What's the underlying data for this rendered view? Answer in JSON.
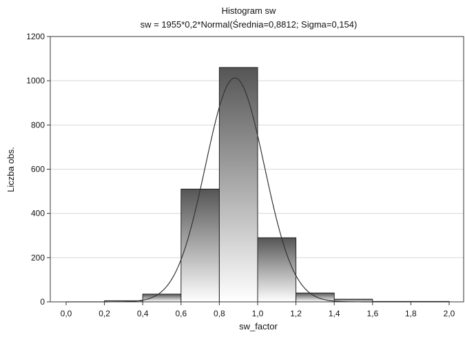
{
  "chart_data": {
    "type": "bar",
    "title": "Histogram   sw",
    "subtitle": "sw = 1955*0,2*Normal(Średnia=0,8812; Sigma=0,154)",
    "xlabel": "sw_factor",
    "ylabel": "Liczba obs.",
    "xlim": [
      -0.1,
      2.0
    ],
    "ylim": [
      0,
      1200
    ],
    "x_ticks": [
      "0,0",
      "0,2",
      "0,4",
      "0,6",
      "0,8",
      "1,0",
      "1,2",
      "1,4",
      "1,6",
      "1,8",
      "2,0"
    ],
    "y_ticks": [
      "0",
      "200",
      "400",
      "600",
      "800",
      "1000",
      "1200"
    ],
    "grid": "horizontal",
    "legend": "none",
    "bins": [
      {
        "x0": 0.2,
        "x1": 0.4,
        "count": 5
      },
      {
        "x0": 0.4,
        "x1": 0.6,
        "count": 35
      },
      {
        "x0": 0.6,
        "x1": 0.8,
        "count": 510
      },
      {
        "x0": 0.8,
        "x1": 1.0,
        "count": 1060
      },
      {
        "x0": 1.0,
        "x1": 1.2,
        "count": 290
      },
      {
        "x0": 1.2,
        "x1": 1.4,
        "count": 40
      },
      {
        "x0": 1.4,
        "x1": 1.6,
        "count": 12
      },
      {
        "x0": 1.6,
        "x1": 1.8,
        "count": 2
      },
      {
        "x0": 1.8,
        "x1": 2.0,
        "count": 2
      }
    ],
    "fit_curve": {
      "type": "normal",
      "n": 1955,
      "bin_width": 0.2,
      "mean": 0.8812,
      "sigma": 0.154
    },
    "colors": {
      "bar_stroke": "#222222",
      "bar_fill_top": "#555555",
      "bar_fill_bottom": "#ffffff",
      "curve": "#333333",
      "grid": "#d8d8d8",
      "frame": "#333333"
    }
  }
}
